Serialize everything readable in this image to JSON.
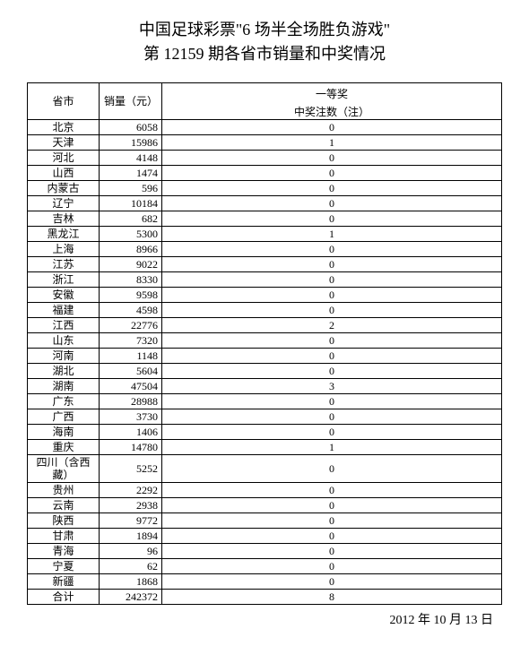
{
  "title_line1": "中国足球彩票\"6 场半全场胜负游戏\"",
  "title_line2": "第 12159 期各省市销量和中奖情况",
  "header": {
    "province": "省市",
    "sales": "销量（元）",
    "prize_top": "一等奖",
    "prize_bottom": "中奖注数（注）"
  },
  "rows": [
    {
      "prov": "北京",
      "sales": "6058",
      "prize": "0"
    },
    {
      "prov": "天津",
      "sales": "15986",
      "prize": "1"
    },
    {
      "prov": "河北",
      "sales": "4148",
      "prize": "0"
    },
    {
      "prov": "山西",
      "sales": "1474",
      "prize": "0"
    },
    {
      "prov": "内蒙古",
      "sales": "596",
      "prize": "0"
    },
    {
      "prov": "辽宁",
      "sales": "10184",
      "prize": "0"
    },
    {
      "prov": "吉林",
      "sales": "682",
      "prize": "0"
    },
    {
      "prov": "黑龙江",
      "sales": "5300",
      "prize": "1"
    },
    {
      "prov": "上海",
      "sales": "8966",
      "prize": "0"
    },
    {
      "prov": "江苏",
      "sales": "9022",
      "prize": "0"
    },
    {
      "prov": "浙江",
      "sales": "8330",
      "prize": "0"
    },
    {
      "prov": "安徽",
      "sales": "9598",
      "prize": "0"
    },
    {
      "prov": "福建",
      "sales": "4598",
      "prize": "0"
    },
    {
      "prov": "江西",
      "sales": "22776",
      "prize": "2"
    },
    {
      "prov": "山东",
      "sales": "7320",
      "prize": "0"
    },
    {
      "prov": "河南",
      "sales": "1148",
      "prize": "0"
    },
    {
      "prov": "湖北",
      "sales": "5604",
      "prize": "0"
    },
    {
      "prov": "湖南",
      "sales": "47504",
      "prize": "3"
    },
    {
      "prov": "广东",
      "sales": "28988",
      "prize": "0"
    },
    {
      "prov": "广西",
      "sales": "3730",
      "prize": "0"
    },
    {
      "prov": "海南",
      "sales": "1406",
      "prize": "0"
    },
    {
      "prov": "重庆",
      "sales": "14780",
      "prize": "1"
    },
    {
      "prov": "四川（含西藏）",
      "sales": "5252",
      "prize": "0"
    },
    {
      "prov": "贵州",
      "sales": "2292",
      "prize": "0"
    },
    {
      "prov": "云南",
      "sales": "2938",
      "prize": "0"
    },
    {
      "prov": "陕西",
      "sales": "9772",
      "prize": "0"
    },
    {
      "prov": "甘肃",
      "sales": "1894",
      "prize": "0"
    },
    {
      "prov": "青海",
      "sales": "96",
      "prize": "0"
    },
    {
      "prov": "宁夏",
      "sales": "62",
      "prize": "0"
    },
    {
      "prov": "新疆",
      "sales": "1868",
      "prize": "0"
    },
    {
      "prov": "合计",
      "sales": "242372",
      "prize": "8"
    }
  ],
  "footer_date": "2012 年 10 月 13 日",
  "style": {
    "background": "#ffffff",
    "text_color": "#000000",
    "border_color": "#000000",
    "title_fontsize": 18,
    "table_fontsize": 12,
    "footer_fontsize": 14,
    "col_widths": {
      "province": 80,
      "sales": 70
    }
  }
}
